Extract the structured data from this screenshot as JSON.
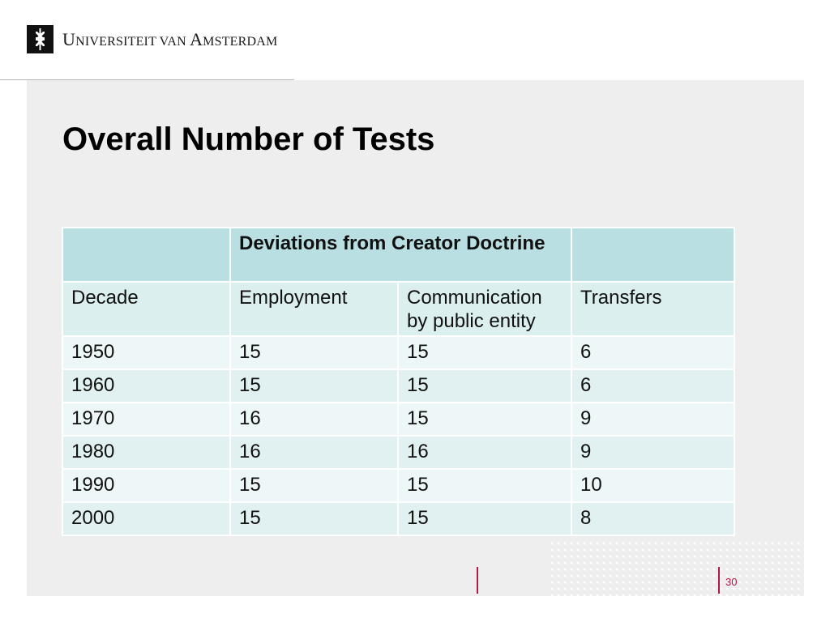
{
  "header": {
    "logo_text_big1": "U",
    "logo_text_small1": "NIVERSITEIT VAN ",
    "logo_text_big2": "A",
    "logo_text_small2": "MSTERDAM"
  },
  "title": "Overall Number of Tests",
  "table": {
    "group_header": "Deviations from Creator Doctrine",
    "columns": [
      "Decade",
      "Employment",
      "Communication by public entity",
      "Transfers"
    ],
    "rows": [
      [
        "1950",
        "15",
        "15",
        "6"
      ],
      [
        "1960",
        "15",
        "15",
        "6"
      ],
      [
        "1970",
        "16",
        "15",
        "9"
      ],
      [
        "1980",
        "16",
        "16",
        "9"
      ],
      [
        "1990",
        "15",
        "15",
        "10"
      ],
      [
        "2000",
        "15",
        "15",
        "8"
      ]
    ]
  },
  "footer": {
    "page_number": "30"
  },
  "colors": {
    "accent": "#b01b46",
    "header_row": "#b9dfe2",
    "panel": "#eeeeee"
  }
}
